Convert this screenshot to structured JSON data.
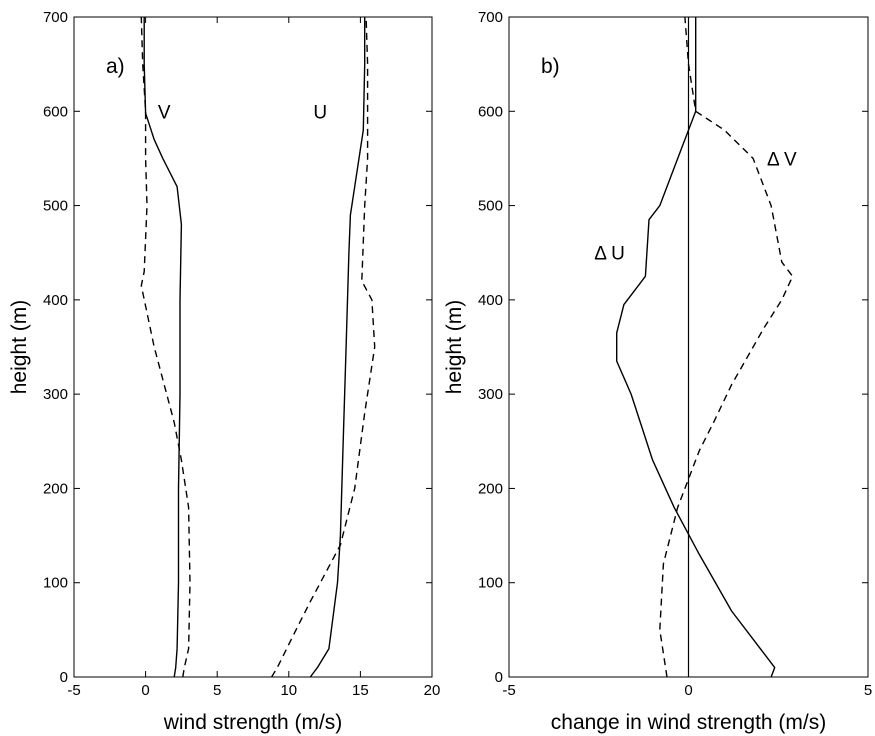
{
  "chart_data": [
    {
      "type": "line",
      "panel_label": "a)",
      "xlabel": "wind strength (m/s)",
      "ylabel": "height (m)",
      "xlim": [
        -5,
        20
      ],
      "ylim": [
        0,
        700
      ],
      "xticks": [
        -5,
        0,
        5,
        10,
        15,
        20
      ],
      "yticks": [
        0,
        100,
        200,
        300,
        400,
        500,
        600,
        700
      ],
      "grid": false,
      "annotations": [
        {
          "text": "V",
          "x": 1.3,
          "y": 600
        },
        {
          "text": "U",
          "x": 12.2,
          "y": 600
        }
      ],
      "series": [
        {
          "style": "solid",
          "points": [
            [
              2,
              0
            ],
            [
              2.1,
              10
            ],
            [
              2.2,
              30
            ],
            [
              2.3,
              100
            ],
            [
              2.3,
              200
            ],
            [
              2.4,
              300
            ],
            [
              2.4,
              400
            ],
            [
              2.5,
              480
            ],
            [
              2.2,
              520
            ],
            [
              1.2,
              550
            ],
            [
              0.6,
              570
            ],
            [
              0,
              598
            ],
            [
              -0.1,
              650
            ],
            [
              -0.1,
              700
            ]
          ]
        },
        {
          "style": "dashed",
          "points": [
            [
              2.6,
              0
            ],
            [
              2.7,
              10
            ],
            [
              3,
              30
            ],
            [
              3.1,
              100
            ],
            [
              3,
              180
            ],
            [
              2.5,
              230
            ],
            [
              2,
              270
            ],
            [
              0.6,
              350
            ],
            [
              -0.3,
              415
            ],
            [
              -0.1,
              430
            ],
            [
              0.1,
              500
            ],
            [
              0,
              550
            ],
            [
              0,
              600
            ],
            [
              -0.2,
              650
            ],
            [
              -0.3,
              700
            ]
          ]
        },
        {
          "style": "solid",
          "points": [
            [
              11.5,
              0
            ],
            [
              12,
              10
            ],
            [
              12.8,
              30
            ],
            [
              13.4,
              100
            ],
            [
              13.6,
              150
            ],
            [
              13.8,
              250
            ],
            [
              14,
              350
            ],
            [
              14.2,
              450
            ],
            [
              14.3,
              490
            ],
            [
              14.6,
              520
            ],
            [
              15.2,
              580
            ],
            [
              15.3,
              650
            ],
            [
              15.3,
              700
            ]
          ]
        },
        {
          "style": "dashed",
          "points": [
            [
              8.8,
              0
            ],
            [
              9.2,
              10
            ],
            [
              10.5,
              50
            ],
            [
              11.5,
              80
            ],
            [
              13.6,
              140
            ],
            [
              14.6,
              200
            ],
            [
              15.3,
              280
            ],
            [
              16,
              350
            ],
            [
              15.8,
              400
            ],
            [
              15.1,
              420
            ],
            [
              15.3,
              500
            ],
            [
              15.5,
              550
            ],
            [
              15.5,
              650
            ],
            [
              15.4,
              700
            ]
          ]
        }
      ]
    },
    {
      "type": "line",
      "panel_label": "b)",
      "xlabel": "change in wind strength (m/s)",
      "ylabel": "height (m)",
      "xlim": [
        -5,
        5
      ],
      "ylim": [
        0,
        700
      ],
      "xticks": [
        -5,
        0,
        5
      ],
      "yticks": [
        0,
        100,
        200,
        300,
        400,
        500,
        600,
        700
      ],
      "grid": false,
      "reference_line_x": 0,
      "annotations": [
        {
          "text": "Δ U",
          "x": -2.2,
          "y": 450
        },
        {
          "text": "Δ V",
          "x": 2.6,
          "y": 550
        }
      ],
      "series": [
        {
          "style": "solid",
          "points": [
            [
              2.3,
              0
            ],
            [
              2.4,
              10
            ],
            [
              2.2,
              20
            ],
            [
              1.2,
              70
            ],
            [
              0.3,
              130
            ],
            [
              -0.4,
              180
            ],
            [
              -1,
              230
            ],
            [
              -1.6,
              300
            ],
            [
              -2,
              335
            ],
            [
              -2,
              365
            ],
            [
              -1.8,
              395
            ],
            [
              -1.2,
              425
            ],
            [
              -1.1,
              485
            ],
            [
              -0.8,
              500
            ],
            [
              -0.2,
              560
            ],
            [
              0.2,
              600
            ],
            [
              0.2,
              650
            ],
            [
              0.2,
              700
            ]
          ]
        },
        {
          "style": "dashed",
          "points": [
            [
              -0.6,
              0
            ],
            [
              -0.8,
              50
            ],
            [
              -0.7,
              120
            ],
            [
              -0.3,
              180
            ],
            [
              0.3,
              240
            ],
            [
              0.7,
              270
            ],
            [
              1.2,
              310
            ],
            [
              2.1,
              370
            ],
            [
              2.6,
              400
            ],
            [
              2.9,
              425
            ],
            [
              2.6,
              440
            ],
            [
              2.4,
              480
            ],
            [
              2.3,
              500
            ],
            [
              1.8,
              550
            ],
            [
              1,
              580
            ],
            [
              0.2,
              600
            ],
            [
              0,
              650
            ],
            [
              -0.1,
              700
            ]
          ]
        }
      ]
    }
  ]
}
